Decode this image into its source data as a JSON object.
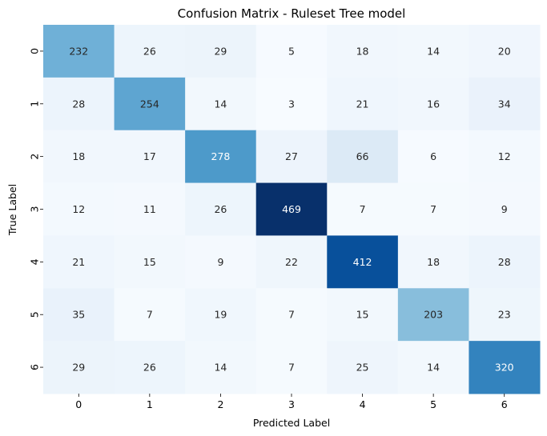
{
  "chart_data": {
    "type": "heatmap",
    "title": "Confusion Matrix - Ruleset Tree model",
    "xlabel": "Predicted Label",
    "ylabel": "True Label",
    "x_categories": [
      "0",
      "1",
      "2",
      "3",
      "4",
      "5",
      "6"
    ],
    "y_categories": [
      "0",
      "1",
      "2",
      "3",
      "4",
      "5",
      "6"
    ],
    "values": [
      [
        232,
        26,
        29,
        5,
        18,
        14,
        20
      ],
      [
        28,
        254,
        14,
        3,
        21,
        16,
        34
      ],
      [
        18,
        17,
        278,
        27,
        66,
        6,
        12
      ],
      [
        12,
        11,
        26,
        469,
        7,
        7,
        9
      ],
      [
        21,
        15,
        9,
        22,
        412,
        18,
        28
      ],
      [
        35,
        7,
        19,
        7,
        15,
        203,
        23
      ],
      [
        29,
        26,
        14,
        7,
        25,
        14,
        320
      ]
    ],
    "colormap": "Blues",
    "colorbar": false,
    "annotations": true
  }
}
